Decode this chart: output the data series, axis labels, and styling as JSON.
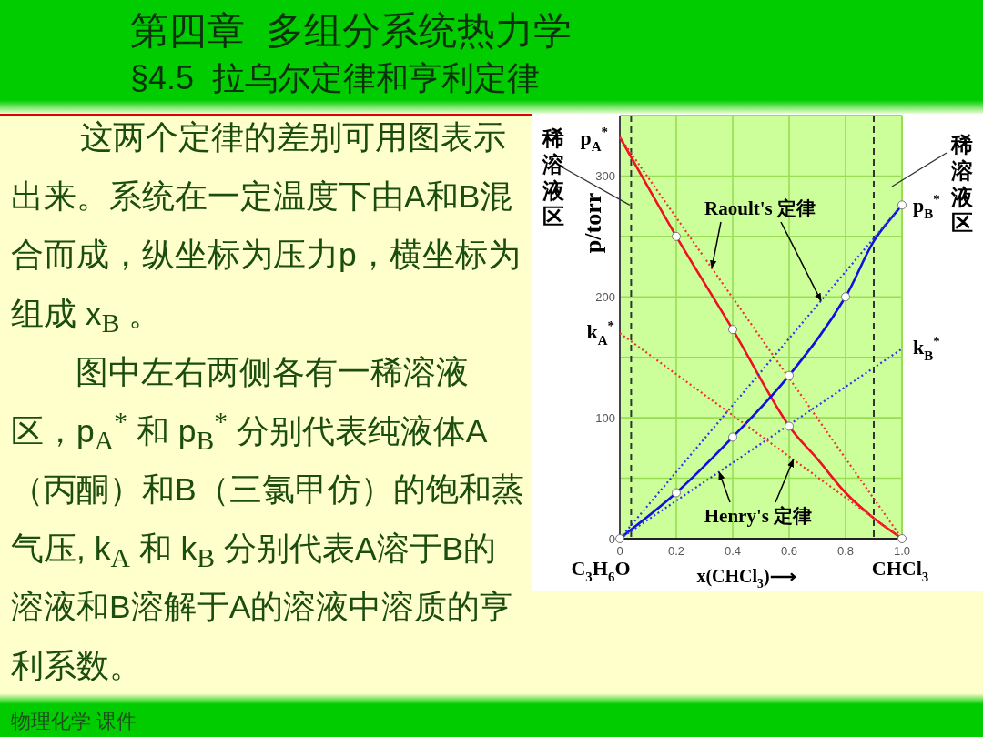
{
  "chart_data": {
    "type": "line",
    "title": "第四章  多组分系统热力学",
    "subtitle": "§4.5  拉乌尔定律和亨利定律",
    "xlabel": "x(CHCl$_{3}$)⟶",
    "ylabel": "p/torr",
    "xlim": [
      0,
      1
    ],
    "xticks": [
      0,
      0.2,
      0.4,
      0.6,
      0.8,
      {
        "value": 1,
        "label": "1.0"
      }
    ],
    "ylim": [
      0,
      350
    ],
    "yticks": [
      0,
      {
        "value": 50,
        "label": null
      },
      100,
      {
        "value": 150,
        "label": null
      },
      200,
      {
        "value": 250,
        "label": null
      },
      300,
      {
        "value": 350,
        "label": null
      }
    ],
    "grid": true,
    "series": [
      {
        "type": "line",
        "color": "#ee1122",
        "line_style": "solid",
        "x": [
          0,
          0.2,
          0.4,
          0.6,
          0.7,
          0.8,
          0.9,
          1
        ],
        "values": [
          332,
          250,
          173,
          93,
          66,
          38,
          17,
          0
        ]
      },
      {
        "type": "line",
        "color": "#1111dd",
        "line_style": "solid",
        "x": [
          0,
          0.2,
          0.4,
          0.6,
          0.8,
          0.9,
          1
        ],
        "values": [
          0,
          38,
          84,
          135,
          200,
          246,
          276
        ]
      },
      {
        "type": "line",
        "color": "#ee3333",
        "line_style": "dotted",
        "x": [
          0,
          1
        ],
        "values": [
          332,
          0
        ]
      },
      {
        "type": "line",
        "color": "#3333ee",
        "line_style": "dotted",
        "x": [
          0,
          1
        ],
        "values": [
          0,
          276
        ]
      },
      {
        "type": "line",
        "color": "#ee3333",
        "line_style": "dotted",
        "x": [
          0,
          1
        ],
        "values": [
          170,
          0
        ]
      },
      {
        "type": "line",
        "color": "#3333ee",
        "line_style": "dotted",
        "x": [
          0,
          1
        ],
        "values": [
          0,
          157
        ]
      },
      {
        "type": "scatter",
        "color": "#ffffff",
        "marker": "circle",
        "x": [
          0,
          0.2,
          0.2,
          0.4,
          0.4,
          0.6,
          0.6,
          0.8,
          1,
          1
        ],
        "values": [
          0,
          38,
          250,
          84,
          173,
          135,
          93,
          200,
          276,
          0
        ]
      }
    ],
    "ref_lines": [
      {
        "axis": "x",
        "value": 0.04,
        "color": "#333333",
        "line_style": "dashed"
      },
      {
        "axis": "x",
        "value": 0.9,
        "color": "#333333",
        "line_style": "dashed"
      }
    ],
    "annotations": [
      "这两个定律的差别可用图表示出来。系统在一定温度下由A和B混合而成，纵坐标为压力p，横坐标为组成 x$_{B}$ 。",
      "图中左右两侧各有一稀溶液区，p$_{A}$$^{*}$ 和 p$_{B}$$^{*}$ 分别代表纯液体A（丙酮）和B（三氯甲仿）的饱和蒸气压, k$_{A}$ 和 k$_{B}$ 分别代表A溶于B的溶液和B溶解于A的溶液中溶质的亨利系数。",
      "物理化学 课件",
      {
        "text": "Raoult's 定律",
        "x": 0.326,
        "y": 224
      },
      {
        "text": "Henry's 定律",
        "x": 0.352,
        "y": 55
      },
      {
        "text": "稀溶液区",
        "x": 0.035,
        "y": 276
      },
      "稀溶液区",
      {
        "text": "p$_{A}$$^{*}$",
        "x": 0,
        "y": 332
      },
      {
        "text": "k$_{A}$$^{*}$",
        "x": 0,
        "y": 170
      },
      {
        "text": "p$_{B}$$^{*}$",
        "x": 1,
        "y": 276
      },
      {
        "text": "k$_{B}$$^{*}$",
        "x": 1,
        "y": 157
      },
      {
        "text": "C$_{3}$H$_{6}$O",
        "x": 0,
        "y": 0
      },
      {
        "text": "CHCl$_{3}$",
        "x": 1,
        "y": 0
      }
    ]
  }
}
